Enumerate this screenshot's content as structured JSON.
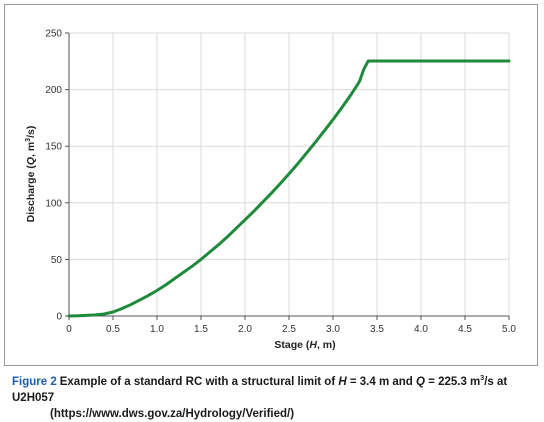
{
  "caption": {
    "label": "Figure 2",
    "text_before_h": "Example of a standard RC with a structural limit of ",
    "h_symbol": "H",
    "h_value": " = 3.4 m and ",
    "q_symbol": "Q",
    "q_value": " = 225.3 m",
    "q_unit_power": "3",
    "text_after": "/s at U2H057",
    "url": "(https://www.dws.gov.za/Hydrology/Verified/)"
  },
  "chart_data": {
    "type": "line",
    "title": "",
    "xlabel_prefix": "Stage (",
    "xlabel_symbol": "H",
    "xlabel_suffix": ", m)",
    "ylabel_prefix": "Discharge (",
    "ylabel_symbol": "Q",
    "ylabel_suffix": ", m",
    "ylabel_power": "3",
    "ylabel_end": "/s)",
    "xlim": [
      0,
      5.0
    ],
    "ylim": [
      0,
      250
    ],
    "xticks": [
      "0",
      "0.5",
      "1.0",
      "1.5",
      "2.0",
      "2.5",
      "3.0",
      "3.5",
      "4.0",
      "4.5",
      "5.0"
    ],
    "xtick_values": [
      0,
      0.5,
      1.0,
      1.5,
      2.0,
      2.5,
      3.0,
      3.5,
      4.0,
      4.5,
      5.0
    ],
    "yticks": [
      "0",
      "50",
      "100",
      "150",
      "200",
      "250"
    ],
    "ytick_values": [
      0,
      50,
      100,
      150,
      200,
      250
    ],
    "grid": true,
    "legend": "none",
    "line_color": "#1f8a3c",
    "series": [
      {
        "x": [
          0,
          0.1,
          0.2,
          0.3,
          0.4,
          0.5,
          0.6,
          0.7,
          0.8,
          0.9,
          1.0,
          1.1,
          1.2,
          1.3,
          1.4,
          1.5,
          1.6,
          1.7,
          1.8,
          1.9,
          2.0,
          2.1,
          2.2,
          2.3,
          2.4,
          2.5,
          2.6,
          2.7,
          2.8,
          2.9,
          3.0,
          3.1,
          3.2,
          3.3,
          3.35,
          3.4,
          3.5,
          4.0,
          4.5,
          5.0
        ],
        "y": [
          0,
          0.2,
          0.5,
          1.0,
          1.8,
          3.5,
          6.5,
          10,
          14,
          18,
          22.5,
          27.5,
          33,
          38.5,
          44,
          50,
          56.5,
          63,
          70,
          77.5,
          85,
          92.5,
          100.5,
          108.5,
          117,
          125.5,
          134.5,
          144,
          153.5,
          163.5,
          173.5,
          184,
          195,
          207,
          218,
          225.3,
          225.3,
          225.3,
          225.3,
          225.3
        ]
      }
    ]
  }
}
